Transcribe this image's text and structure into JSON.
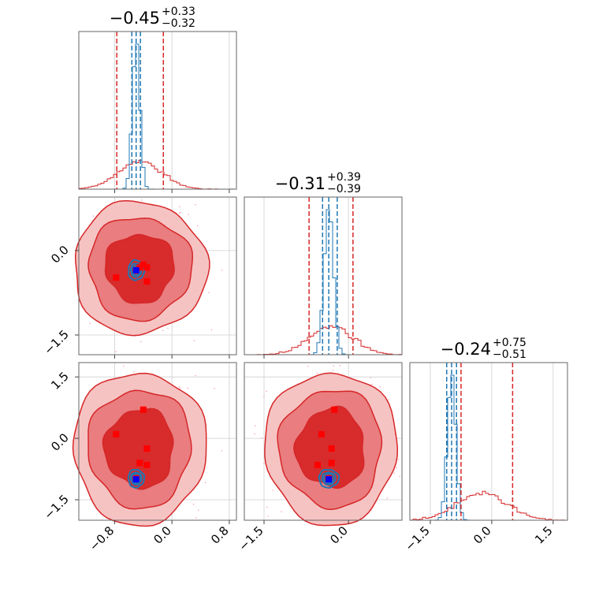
{
  "chart_data": {
    "type": "corner",
    "n_params": 3,
    "titles": [
      {
        "center": "−0.45",
        "plus": "+0.33",
        "minus": "−0.32"
      },
      {
        "center": "−0.31",
        "plus": "+0.39",
        "minus": "−0.39"
      },
      {
        "center": "−0.24",
        "plus": "+0.75",
        "minus": "−0.51"
      }
    ],
    "axis_ranges": [
      [
        -1.3,
        0.9
      ],
      [
        -1.85,
        0.95
      ],
      [
        -2.0,
        1.85
      ]
    ],
    "ticks": [
      {
        "values": [
          -0.8,
          0.0,
          0.8
        ],
        "labels": [
          "−0.8",
          "0.0",
          "0.8"
        ]
      },
      {
        "values": [
          -1.5,
          0.0
        ],
        "labels": [
          "−1.5",
          "0.0"
        ]
      },
      {
        "values": [
          -1.5,
          0.0,
          1.5
        ],
        "labels": [
          "−1.5",
          "0.0",
          "1.5"
        ]
      }
    ],
    "grid": true,
    "colors": {
      "wide_posterior": "#d62728",
      "narrow_posterior": "#1f77b4",
      "markers": "#ff0000",
      "truth": "#0000ff",
      "scatter": "#f4a6c0",
      "contour_fill_inner": "#d62728",
      "contour_fill_mid": "#e8797b",
      "contour_fill_outer": "#f5c0c0"
    },
    "wide_posterior": {
      "mean": [
        -0.45,
        -0.31,
        -0.24
      ],
      "sigma": [
        0.3,
        0.38,
        0.6
      ],
      "quantiles": [
        [
          -0.77,
          -0.12
        ],
        [
          -0.7,
          0.08
        ],
        [
          -0.75,
          0.51
        ]
      ],
      "contour_radii": [
        [
          0.22,
          0.28,
          0.55
        ],
        [
          0.28,
          0.38,
          0.7
        ],
        [
          0.45,
          0.62,
          1.1
        ]
      ]
    },
    "narrow_posterior": {
      "mean": [
        -0.5,
        -0.35,
        -0.98
      ],
      "sigma": [
        0.05,
        0.08,
        0.1
      ],
      "quantiles": [
        [
          -0.56,
          -0.44
        ],
        [
          -0.46,
          -0.2
        ],
        [
          -1.1,
          -0.86
        ]
      ]
    },
    "truth": [
      -0.5,
      -0.35,
      -1.0
    ],
    "markers": [
      [
        -0.5,
        -0.35,
        -0.98
      ],
      [
        -0.4,
        -0.25,
        0.7
      ],
      [
        -0.35,
        -0.3,
        -0.25
      ],
      [
        -0.35,
        -0.55,
        -0.65
      ],
      [
        -0.78,
        -0.48,
        0.1
      ],
      [
        -0.45,
        -0.3,
        -0.6
      ]
    ]
  }
}
